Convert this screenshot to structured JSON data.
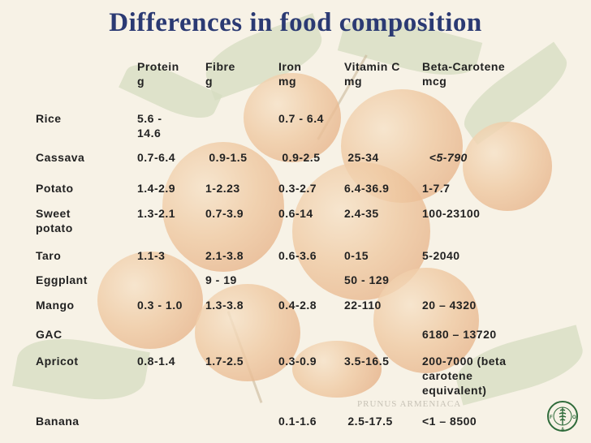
{
  "title": "Differences in food composition",
  "headers": [
    "",
    "Protein\ng",
    "Fibre\ng",
    "Iron\nmg",
    "Vitamin C\nmg",
    "Beta-Carotene\nmcg"
  ],
  "rows": [
    {
      "food": "Rice",
      "protein": "5.6 -\n14.6",
      "fibre": "",
      "iron": "0.7 - 6.4",
      "vitc": "",
      "beta": ""
    },
    {
      "food": "Cassava",
      "protein": "0.7-6.4",
      "fibre": " 0.9-1.5",
      "iron": " 0.9-2.5",
      "vitc": " 25-34",
      "beta": "  <5-790"
    },
    {
      "food": "Potato",
      "protein": "1.4-2.9",
      "fibre": "1-2.23",
      "iron": "0.3-2.7",
      "vitc": "6.4-36.9",
      "beta": "1-7.7"
    },
    {
      "food": "Sweet\npotato",
      "protein": "1.3-2.1",
      "fibre": "0.7-3.9",
      "iron": "0.6-14",
      "vitc": "2.4-35",
      "beta": "100-23100"
    },
    {
      "food": "Taro",
      "protein": "1.1-3",
      "fibre": "2.1-3.8",
      "iron": "0.6-3.6",
      "vitc": "0-15",
      "beta": "5-2040"
    },
    {
      "food": "Eggplant",
      "protein": "",
      "fibre": "9 - 19",
      "iron": "",
      "vitc": "50 - 129",
      "beta": ""
    },
    {
      "food": "Mango",
      "protein": "0.3 - 1.0",
      "fibre": "1.3-3.8",
      "iron": "0.4-2.8",
      "vitc": "22-110",
      "beta": "20 – 4320"
    },
    {
      "food": "GAC",
      "protein": "",
      "fibre": "",
      "iron": "",
      "vitc": "",
      "beta": "6180 – 13720"
    },
    {
      "food": "Apricot",
      "protein": "0.8-1.4",
      "fibre": "1.7-2.5",
      "iron": "0.3-0.9",
      "vitc": "3.5-16.5",
      "beta": "200-7000 (beta\ncarotene\nequivalent)"
    },
    {
      "food": "Banana",
      "protein": "",
      "fibre": "",
      "iron": "0.1-1.6",
      "vitc": " 2.5-17.5",
      "beta": "<1 – 8500"
    }
  ],
  "background_caption": "PRUNUS ARMENIACA",
  "logo_text": "FIAT PANIS",
  "colors": {
    "title": "#2b3a73",
    "text": "#222222",
    "logo": "#2f6b3a"
  }
}
